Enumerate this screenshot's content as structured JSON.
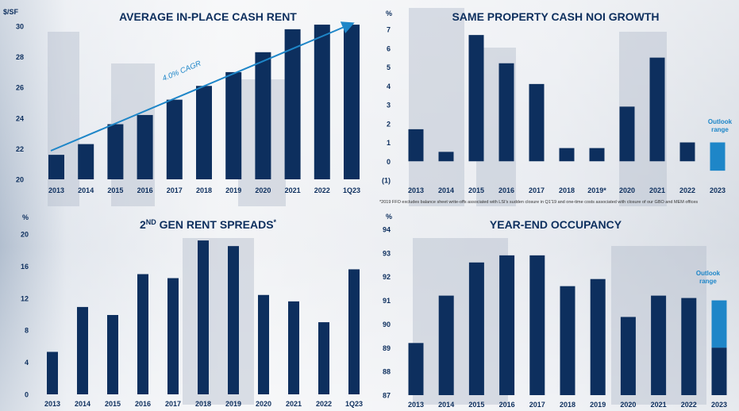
{
  "colors": {
    "bar": "#0d2f5e",
    "outlook": "#1e86c8",
    "text": "#0d2f5e",
    "axis": "#333333"
  },
  "chart_data": [
    {
      "type": "bar",
      "title": "AVERAGE IN-PLACE CASH RENT",
      "ylabel": "$/SF",
      "ylim": [
        20,
        30
      ],
      "yticks": [
        "20",
        "22",
        "24",
        "26",
        "28",
        "30"
      ],
      "categories": [
        "2013",
        "2014",
        "2015",
        "2016",
        "2017",
        "2018",
        "2019",
        "2020",
        "2021",
        "2022",
        "1Q23"
      ],
      "values": [
        21.6,
        22.3,
        23.6,
        24.2,
        25.2,
        26.1,
        27.0,
        28.3,
        29.8,
        30.1,
        30.1
      ],
      "annotation": "4.0% CAGR",
      "grid": false
    },
    {
      "type": "bar",
      "title": "SAME PROPERTY CASH NOI GROWTH",
      "ylabel": "%",
      "ylim": [
        -1,
        7
      ],
      "yticks": [
        "(1)",
        "0",
        "1",
        "2",
        "3",
        "4",
        "5",
        "6",
        "7"
      ],
      "categories": [
        "2013",
        "2014",
        "2015",
        "2016",
        "2017",
        "2018",
        "2019*",
        "2020",
        "2021",
        "2022",
        "2023"
      ],
      "values": [
        1.7,
        0.5,
        6.7,
        5.2,
        4.1,
        0.7,
        0.7,
        2.9,
        5.5,
        1.0,
        null
      ],
      "outlook": {
        "label": "Outlook range",
        "low": -0.5,
        "high": 1.0
      },
      "footnote": "*2019 FFO excludes balance sheet write-offs associated with LSI's sudden closure in Q1'19 and one-time costs associated with closure of our GBO and MEM offices",
      "grid": false
    },
    {
      "type": "bar",
      "title": "2ND GEN RENT SPREADS*",
      "ylabel": "%",
      "ylim": [
        0,
        20
      ],
      "yticks": [
        "0",
        "4",
        "8",
        "12",
        "16",
        "20"
      ],
      "categories": [
        "2013",
        "2014",
        "2015",
        "2016",
        "2017",
        "2018",
        "2019",
        "2020",
        "2021",
        "2022",
        "1Q23"
      ],
      "values": [
        5.3,
        10.9,
        9.9,
        15.0,
        14.5,
        19.2,
        18.5,
        12.4,
        11.6,
        9.0,
        15.6
      ],
      "grid": false
    },
    {
      "type": "bar",
      "title": "YEAR-END OCCUPANCY",
      "ylabel": "%",
      "ylim": [
        87,
        94
      ],
      "yticks": [
        "87",
        "88",
        "89",
        "90",
        "91",
        "92",
        "93",
        "94"
      ],
      "categories": [
        "2013",
        "2014",
        "2015",
        "2016",
        "2017",
        "2018",
        "2019",
        "2020",
        "2021",
        "2022",
        "2023"
      ],
      "values": [
        89.2,
        91.2,
        92.6,
        92.9,
        92.9,
        91.6,
        91.9,
        90.3,
        91.2,
        91.1,
        89.0
      ],
      "outlook": {
        "label": "Outlook range",
        "low": 89.0,
        "high": 91.0
      },
      "grid": false
    }
  ]
}
